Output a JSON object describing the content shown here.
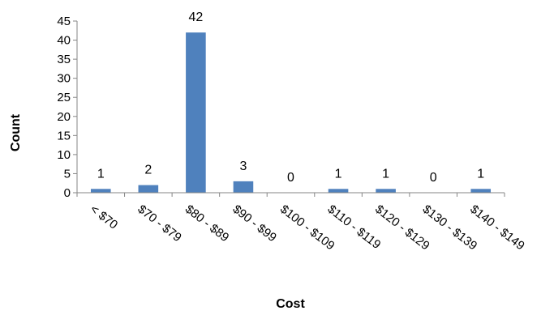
{
  "chart_data": {
    "type": "bar",
    "title": "",
    "xlabel": "Cost",
    "ylabel": "Count",
    "categories": [
      "< $70",
      "$70 - $79",
      "$80 - $89",
      "$90 - $99",
      "$100 - $109",
      "$110 - $119",
      "$120 - $129",
      "$130 - $139",
      "$140 - $149"
    ],
    "values": [
      1,
      2,
      42,
      3,
      0,
      1,
      1,
      0,
      1
    ],
    "ylim": [
      0,
      45
    ],
    "yticks": [
      0,
      5,
      10,
      15,
      20,
      25,
      30,
      35,
      40,
      45
    ],
    "grid": false,
    "legend": "none",
    "colors": {
      "bar": "#4F81BD",
      "axis": "#868686"
    }
  }
}
